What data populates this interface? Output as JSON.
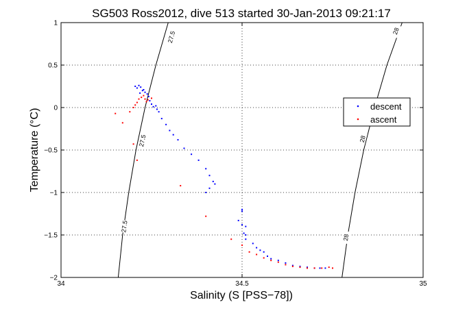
{
  "chart_data": {
    "type": "scatter",
    "title": "SG503 Ross2012, dive 513 started 30-Jan-2013 09:21:17",
    "xlabel": "Salinity (S [PSS−78])",
    "ylabel": "Temperature (°C)",
    "xlim": [
      34,
      35
    ],
    "ylim": [
      -2,
      1
    ],
    "xticks": [
      34,
      34.5,
      35
    ],
    "xtick_labels": [
      "34",
      "34.5",
      "35"
    ],
    "yticks": [
      -2,
      -1.5,
      -1,
      -0.5,
      0,
      0.5,
      1
    ],
    "ytick_labels": [
      "−2",
      "−1.5",
      "−1",
      "−0.5",
      "0",
      "0.5",
      "1"
    ],
    "grid": true,
    "legend_position": "right",
    "colors": {
      "descent": "#0000ff",
      "ascent": "#ff0000",
      "contour": "#000000",
      "grid": "#000000"
    },
    "series": [
      {
        "name": "descent",
        "marker": "point",
        "points": [
          [
            34.205,
            0.25
          ],
          [
            34.215,
            0.26
          ],
          [
            34.22,
            0.24
          ],
          [
            34.228,
            0.21
          ],
          [
            34.232,
            0.18
          ],
          [
            34.238,
            0.16
          ],
          [
            34.225,
            0.2
          ],
          [
            34.21,
            0.23
          ],
          [
            34.218,
            0.17
          ],
          [
            34.242,
            0.13
          ],
          [
            34.245,
            0.08
          ],
          [
            34.25,
            0.04
          ],
          [
            34.255,
            0.01
          ],
          [
            34.262,
            0.02
          ],
          [
            34.265,
            -0.02
          ],
          [
            34.27,
            -0.05
          ],
          [
            34.278,
            -0.13
          ],
          [
            34.29,
            -0.2
          ],
          [
            34.3,
            -0.27
          ],
          [
            34.31,
            -0.32
          ],
          [
            34.323,
            -0.38
          ],
          [
            34.34,
            -0.48
          ],
          [
            34.36,
            -0.55
          ],
          [
            34.38,
            -0.62
          ],
          [
            34.4,
            -0.72
          ],
          [
            34.41,
            -0.8
          ],
          [
            34.42,
            -0.87
          ],
          [
            34.425,
            -0.9
          ],
          [
            34.41,
            -0.95
          ],
          [
            34.4,
            -1.0
          ],
          [
            34.5,
            -1.2
          ],
          [
            34.5,
            -1.22
          ],
          [
            34.49,
            -1.33
          ],
          [
            34.5,
            -1.38
          ],
          [
            34.51,
            -1.4
          ],
          [
            34.505,
            -1.48
          ],
          [
            34.51,
            -1.5
          ],
          [
            34.51,
            -1.55
          ],
          [
            34.53,
            -1.6
          ],
          [
            34.54,
            -1.65
          ],
          [
            34.55,
            -1.68
          ],
          [
            34.56,
            -1.7
          ],
          [
            34.57,
            -1.75
          ],
          [
            34.58,
            -1.78
          ],
          [
            34.6,
            -1.8
          ],
          [
            34.62,
            -1.83
          ],
          [
            34.64,
            -1.86
          ],
          [
            34.66,
            -1.87
          ],
          [
            34.68,
            -1.88
          ],
          [
            34.7,
            -1.89
          ],
          [
            34.715,
            -1.89
          ],
          [
            34.73,
            -1.89
          ]
        ]
      },
      {
        "name": "ascent",
        "marker": "point",
        "points": [
          [
            34.15,
            -0.07
          ],
          [
            34.17,
            -0.18
          ],
          [
            34.19,
            -0.05
          ],
          [
            34.2,
            -0.0
          ],
          [
            34.205,
            0.03
          ],
          [
            34.21,
            0.06
          ],
          [
            34.215,
            0.1
          ],
          [
            34.222,
            0.12
          ],
          [
            34.228,
            0.14
          ],
          [
            34.232,
            0.1
          ],
          [
            34.236,
            0.07
          ],
          [
            34.24,
            0.09
          ],
          [
            34.25,
            0.11
          ],
          [
            34.2,
            -0.43
          ],
          [
            34.21,
            -0.62
          ],
          [
            34.33,
            -0.92
          ],
          [
            34.4,
            -1.28
          ],
          [
            34.47,
            -1.55
          ],
          [
            34.5,
            -1.62
          ],
          [
            34.52,
            -1.7
          ],
          [
            34.54,
            -1.73
          ],
          [
            34.56,
            -1.77
          ],
          [
            34.58,
            -1.8
          ],
          [
            34.6,
            -1.82
          ],
          [
            34.62,
            -1.85
          ],
          [
            34.64,
            -1.87
          ],
          [
            34.66,
            -1.88
          ],
          [
            34.68,
            -1.89
          ],
          [
            34.7,
            -1.89
          ],
          [
            34.72,
            -1.89
          ],
          [
            34.74,
            -1.88
          ],
          [
            34.75,
            -1.89
          ]
        ]
      }
    ],
    "contours": [
      {
        "label": "27.5",
        "points": [
          [
            34.158,
            -2.0
          ],
          [
            34.17,
            -1.5
          ],
          [
            34.187,
            -1.0
          ],
          [
            34.207,
            -0.5
          ],
          [
            34.232,
            0.0
          ],
          [
            34.262,
            0.5
          ],
          [
            34.296,
            1.0
          ]
        ],
        "label_positions": [
          [
            34.175,
            -1.4
          ],
          [
            34.225,
            -0.39
          ],
          [
            34.305,
            0.83
          ]
        ]
      },
      {
        "label": "28",
        "points": [
          [
            34.776,
            -2.0
          ],
          [
            34.792,
            -1.5
          ],
          [
            34.812,
            -1.0
          ],
          [
            34.836,
            -0.5
          ],
          [
            34.866,
            0.0
          ],
          [
            34.9,
            0.5
          ],
          [
            34.942,
            1.0
          ]
        ],
        "label_positions": [
          [
            34.787,
            -1.53
          ],
          [
            34.833,
            -0.37
          ],
          [
            34.925,
            0.9
          ]
        ]
      }
    ]
  }
}
